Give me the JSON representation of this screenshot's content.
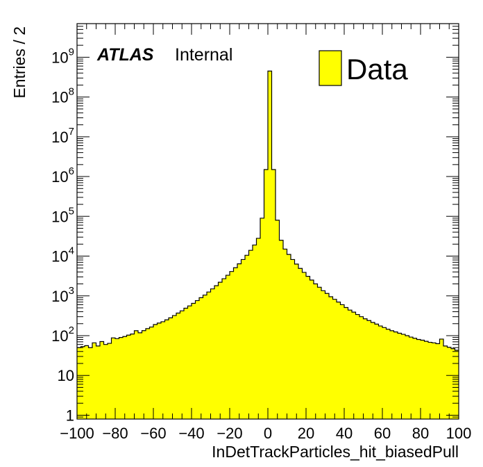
{
  "chart_data": {
    "type": "bar",
    "title": "",
    "xlabel": "InDetTrackParticles_hit_biasedPull",
    "ylabel": "Entries / 2",
    "x_bin_edges_range": [
      -100,
      100
    ],
    "bin_width": 2,
    "xlim": [
      -100,
      100
    ],
    "ylim": [
      0.8,
      7000000000
    ],
    "y_scale": "log",
    "grid": false,
    "legend_position": "top-right",
    "x_tick_labels": [
      "−100",
      "−80",
      "−60",
      "−40",
      "−20",
      "0",
      "20",
      "40",
      "60",
      "80",
      "100"
    ],
    "x_tick_values": [
      -100,
      -80,
      -60,
      -40,
      -20,
      0,
      20,
      40,
      60,
      80,
      100
    ],
    "y_tick_values": [
      1,
      10,
      100,
      1000,
      10000,
      100000,
      1000000,
      10000000,
      100000000,
      1000000000
    ],
    "y_tick_labels": [
      {
        "base": "1",
        "exp": ""
      },
      {
        "base": "10",
        "exp": ""
      },
      {
        "base": "10",
        "exp": "2"
      },
      {
        "base": "10",
        "exp": "3"
      },
      {
        "base": "10",
        "exp": "4"
      },
      {
        "base": "10",
        "exp": "5"
      },
      {
        "base": "10",
        "exp": "6"
      },
      {
        "base": "10",
        "exp": "7"
      },
      {
        "base": "10",
        "exp": "8"
      },
      {
        "base": "10",
        "exp": "9"
      }
    ],
    "experiment_label": "ATLAS",
    "status_label": "Internal",
    "series": [
      {
        "name": "Data",
        "fill_color": "#ffff00",
        "edge_color": "#000000",
        "values": [
          50,
          53,
          56,
          50,
          66,
          55,
          71,
          60,
          64,
          88,
          84,
          90,
          95,
          103,
          110,
          133,
          118,
          134,
          150,
          165,
          190,
          207,
          224,
          250,
          280,
          320,
          370,
          420,
          490,
          560,
          650,
          760,
          900,
          1050,
          1250,
          1500,
          1800,
          2200,
          2700,
          3300,
          4100,
          5100,
          6400,
          8200,
          10500,
          14000,
          19000,
          28000,
          90000,
          1500000,
          450000000,
          1500000,
          80000,
          25000,
          15000,
          11000,
          8200,
          6300,
          4900,
          3900,
          3100,
          2500,
          2000,
          1650,
          1350,
          1150,
          950,
          820,
          700,
          600,
          510,
          440,
          390,
          340,
          300,
          265,
          240,
          215,
          195,
          175,
          160,
          145,
          133,
          124,
          115,
          108,
          100,
          92,
          86,
          80,
          77,
          72,
          68,
          66,
          63,
          82,
          55,
          51,
          47,
          43
        ]
      }
    ]
  }
}
